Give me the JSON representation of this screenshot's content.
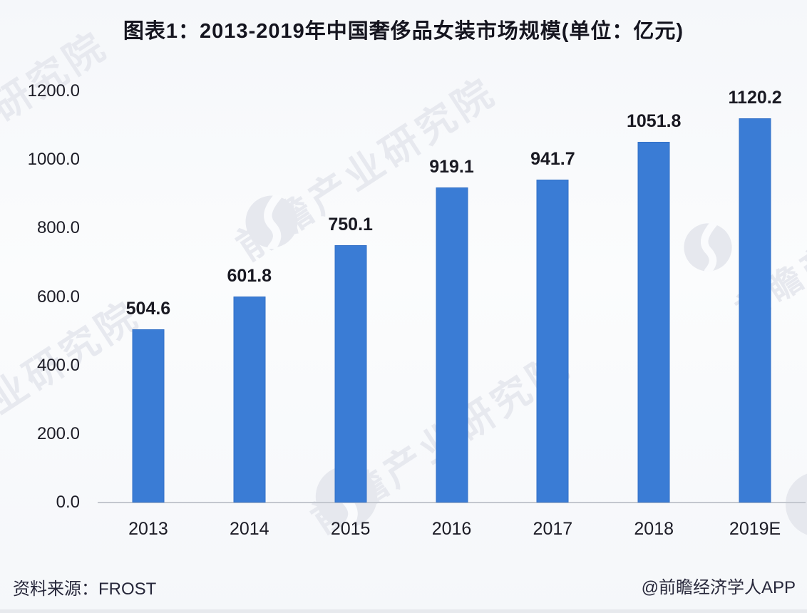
{
  "title": "图表1：2013-2019年中国奢侈品女装市场规模(单位：亿元)",
  "footer": {
    "source_label": "资料来源：FROST",
    "credit_label": "@前瞻经济学人APP"
  },
  "watermark": {
    "text": "前瞻产业研究院",
    "logo_name": "qianzhan-logo-icon",
    "color": "#e7e9ef"
  },
  "colors": {
    "bar": "#3a7cd5",
    "background": "#f7f9fb",
    "axis_line": "#c3c7cf",
    "text": "#1b1b26"
  },
  "chart_data": {
    "type": "bar",
    "title": "图表1：2013-2019年中国奢侈品女装市场规模(单位：亿元)",
    "unit": "亿元",
    "categories": [
      "2013",
      "2014",
      "2015",
      "2016",
      "2017",
      "2018",
      "2019E"
    ],
    "values": [
      504.6,
      601.8,
      750.1,
      919.1,
      941.7,
      1051.8,
      1120.2
    ],
    "value_labels": [
      "504.6",
      "601.8",
      "750.1",
      "919.1",
      "941.7",
      "1051.8",
      "1120.2"
    ],
    "xlabel": "",
    "ylabel": "",
    "ylim": [
      0,
      1200
    ],
    "yticks": [
      1200,
      1000,
      800,
      600,
      400,
      200,
      0
    ],
    "ytick_labels": [
      "1200.0",
      "1000.0",
      "800.0",
      "600.0",
      "400.0",
      "200.0",
      "0.0"
    ],
    "grid": false,
    "legend": false,
    "bar_color": "#3a7cd5"
  }
}
